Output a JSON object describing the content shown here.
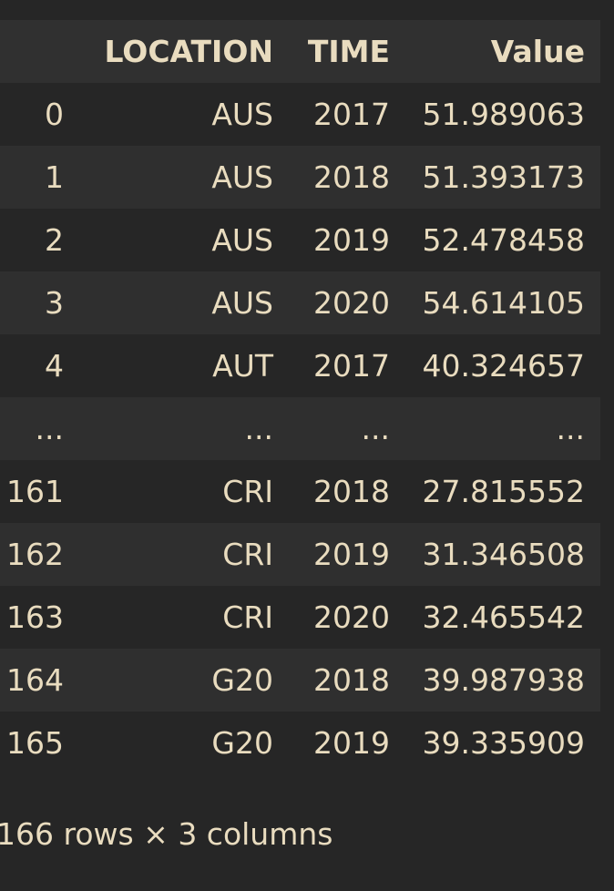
{
  "table": {
    "header": [
      "LOCATION",
      "TIME",
      "Value"
    ],
    "rows": [
      [
        "0",
        "AUS",
        "2017",
        "51.989063"
      ],
      [
        "1",
        "AUS",
        "2018",
        "51.393173"
      ],
      [
        "2",
        "AUS",
        "2019",
        "52.478458"
      ],
      [
        "3",
        "AUS",
        "2020",
        "54.614105"
      ],
      [
        "4",
        "AUT",
        "2017",
        "40.324657"
      ],
      [
        "...",
        "...",
        "...",
        "..."
      ],
      [
        "161",
        "CRI",
        "2018",
        "27.815552"
      ],
      [
        "162",
        "CRI",
        "2019",
        "31.346508"
      ],
      [
        "163",
        "CRI",
        "2020",
        "32.465542"
      ],
      [
        "164",
        "G20",
        "2018",
        "39.987938"
      ],
      [
        "165",
        "G20",
        "2019",
        "39.335909"
      ]
    ]
  },
  "footer": "166 rows × 3 columns"
}
